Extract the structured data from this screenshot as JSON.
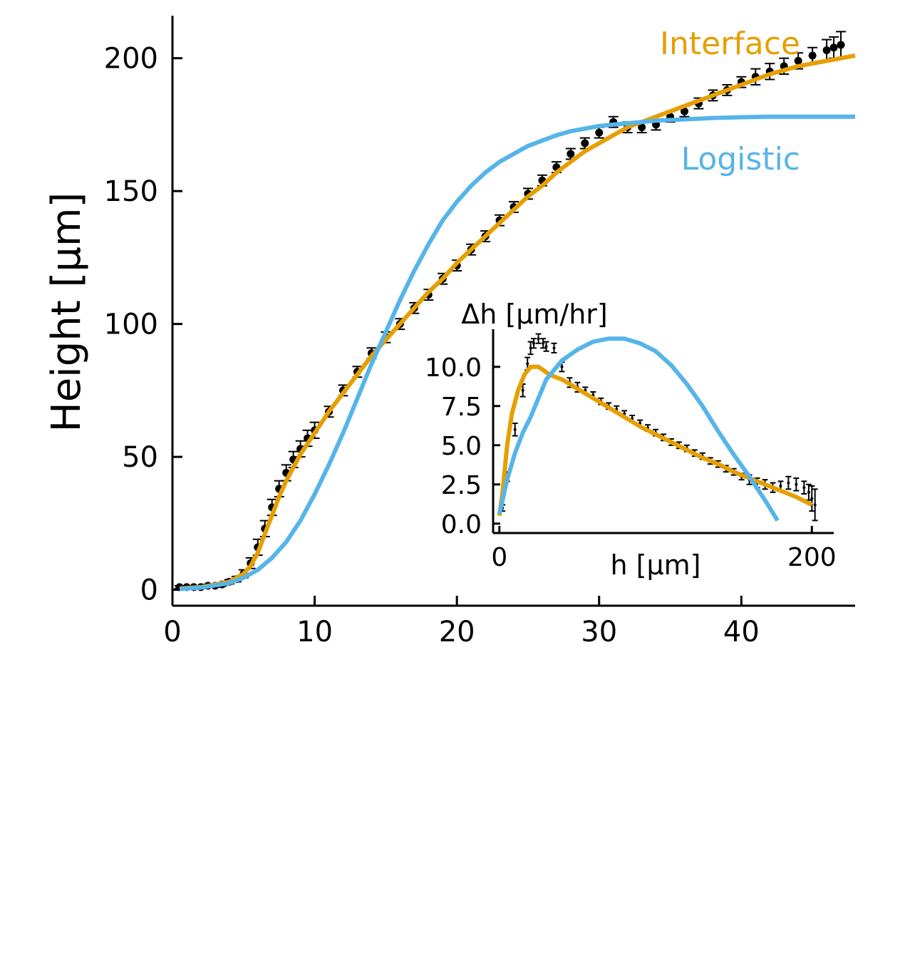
{
  "chart_data": [
    {
      "type": "line",
      "role": "main",
      "xlabel": "",
      "ylabel": "Height [μm]",
      "xlim": [
        0,
        48
      ],
      "ylim": [
        -6,
        216
      ],
      "xticks": [
        0,
        10,
        20,
        30,
        40
      ],
      "yticks": [
        0,
        50,
        100,
        150,
        200
      ],
      "xtick_labels": [
        "0",
        "10",
        "20",
        "30",
        "40"
      ],
      "ytick_labels": [
        "0",
        "50",
        "100",
        "150",
        "200"
      ],
      "grid": false,
      "colors": {
        "data": "#000000",
        "interface": "#E69F00",
        "logistic": "#56B4E9"
      },
      "data_points": {
        "name": "Data",
        "x": [
          0.5,
          1,
          1.5,
          2,
          2.5,
          3,
          3.5,
          4,
          4.5,
          5,
          5.5,
          6,
          6.5,
          7,
          7.5,
          8,
          8.5,
          9,
          9.5,
          10,
          11,
          12,
          13,
          14,
          15,
          16,
          17,
          18,
          19,
          20,
          21,
          22,
          23,
          24,
          25,
          26,
          27,
          28,
          29,
          30,
          31,
          32,
          33,
          34,
          35,
          36,
          37,
          38,
          39,
          40,
          41,
          42,
          43,
          44,
          45,
          46,
          46.5,
          47
        ],
        "y": [
          1,
          1,
          1,
          1,
          1.5,
          1.5,
          2,
          3,
          4,
          6,
          10,
          16,
          23,
          31,
          38,
          44,
          49,
          53,
          57,
          60,
          67,
          75,
          82,
          89,
          95,
          100,
          106,
          111,
          117,
          122,
          128,
          133,
          139,
          144,
          149,
          154,
          159,
          164,
          168,
          172,
          176,
          174,
          174,
          175,
          178,
          180,
          183,
          186,
          188,
          191,
          193,
          195,
          197,
          199,
          201,
          203,
          204,
          205
        ],
        "err": [
          0.5,
          0.5,
          0.5,
          0.5,
          0.5,
          0.5,
          0.5,
          0.8,
          1,
          1.5,
          2,
          3,
          3,
          3,
          3,
          3,
          3,
          3,
          3,
          3,
          2,
          2,
          2,
          2,
          2,
          2,
          2,
          2,
          2,
          2,
          2,
          2,
          2,
          2,
          2,
          2,
          2,
          2,
          2,
          2,
          2,
          2,
          2,
          2,
          2,
          2,
          2,
          2,
          2,
          2,
          3,
          3,
          3,
          3,
          3,
          4,
          4,
          5
        ]
      },
      "series": [
        {
          "name": "Interface",
          "x": [
            0.5,
            2,
            3,
            4,
            5,
            5.5,
            6,
            6.5,
            7,
            7.5,
            8,
            9,
            10,
            11,
            12,
            13,
            14,
            15,
            16,
            17,
            18,
            19,
            20,
            21,
            22,
            23,
            24,
            25,
            26,
            27,
            28,
            29,
            30,
            31,
            32,
            33,
            34,
            35,
            36,
            37,
            38,
            39,
            40,
            41,
            42,
            43,
            44,
            45,
            46,
            47,
            48
          ],
          "y": [
            0.5,
            1,
            2,
            3,
            6,
            9,
            14,
            21,
            28,
            35,
            41,
            51,
            59,
            67,
            74,
            81,
            88,
            94,
            100,
            106,
            112,
            117,
            123,
            128,
            133,
            138,
            143,
            148,
            152,
            157,
            161,
            165,
            168,
            171,
            174,
            176,
            178,
            180,
            182,
            184,
            186,
            188,
            190,
            192,
            194,
            195.5,
            197,
            198,
            199,
            200,
            201
          ]
        },
        {
          "name": "Logistic",
          "x": [
            0.5,
            2,
            4,
            5,
            6,
            7,
            8,
            9,
            10,
            11,
            12,
            13,
            14,
            15,
            16,
            17,
            18,
            19,
            20,
            21,
            22,
            23,
            24,
            25,
            26,
            27,
            28,
            29,
            30,
            31,
            32,
            33,
            34,
            36,
            38,
            40,
            42,
            44,
            46,
            48
          ],
          "y": [
            0.3,
            0.8,
            2.5,
            4.5,
            7.5,
            12,
            18,
            26,
            36,
            47,
            59,
            72,
            85,
            97,
            109,
            120,
            130,
            139,
            146,
            152,
            157,
            161,
            164,
            167,
            169,
            171,
            172.5,
            173.5,
            174.5,
            175,
            175.5,
            176,
            176.5,
            177,
            177.5,
            177.8,
            178,
            178,
            178,
            178
          ]
        }
      ],
      "annotations": [
        {
          "text": "Interface",
          "color": "#E69F00"
        },
        {
          "text": "Logistic",
          "color": "#56B4E9"
        }
      ]
    },
    {
      "type": "line",
      "role": "inset",
      "xlabel": "h [μm]",
      "ylabel": "Δh [μm/hr]",
      "xlim": [
        -4,
        214
      ],
      "ylim": [
        -0.6,
        12.4
      ],
      "xticks": [
        0,
        200
      ],
      "yticks": [
        0,
        2.5,
        5,
        7.5,
        10
      ],
      "xtick_labels": [
        "0",
        "200"
      ],
      "ytick_labels": [
        "0.0",
        "2.5",
        "5.0",
        "7.5",
        "10.0"
      ],
      "grid": false,
      "data_points": {
        "name": "Data",
        "x": [
          2,
          5,
          10,
          15,
          18,
          20,
          22,
          25,
          28,
          30,
          35,
          40,
          45,
          50,
          55,
          60,
          65,
          70,
          75,
          80,
          85,
          90,
          95,
          100,
          105,
          110,
          115,
          120,
          125,
          130,
          135,
          140,
          145,
          150,
          155,
          160,
          165,
          170,
          175,
          180,
          185,
          190,
          195,
          198,
          200,
          202
        ],
        "y": [
          1,
          3,
          6,
          8.5,
          10.2,
          11.2,
          11.5,
          11.8,
          11.5,
          11.3,
          11.2,
          10,
          9,
          8.7,
          8.5,
          8.2,
          7.8,
          7.5,
          7.3,
          7,
          6.7,
          6.4,
          6.1,
          5.8,
          5.5,
          5.2,
          5,
          4.8,
          4.5,
          4.3,
          4,
          3.8,
          3.5,
          3.3,
          3,
          2.8,
          2.6,
          2.5,
          2.3,
          2.4,
          2.6,
          2.5,
          2.3,
          2,
          1.6,
          1.2
        ],
        "err": [
          0.2,
          0.3,
          0.4,
          0.4,
          0.4,
          0.4,
          0.3,
          0.3,
          0.3,
          0.3,
          0.3,
          0.3,
          0.3,
          0.3,
          0.2,
          0.2,
          0.2,
          0.2,
          0.2,
          0.2,
          0.2,
          0.2,
          0.2,
          0.2,
          0.2,
          0.2,
          0.2,
          0.2,
          0.2,
          0.2,
          0.2,
          0.2,
          0.2,
          0.2,
          0.2,
          0.3,
          0.3,
          0.3,
          0.3,
          0.3,
          0.4,
          0.4,
          0.4,
          0.5,
          0.8,
          1
        ]
      },
      "series": [
        {
          "name": "Interface",
          "x": [
            0,
            2,
            5,
            8,
            12,
            16,
            20,
            25,
            28,
            32,
            40,
            50,
            60,
            70,
            80,
            90,
            100,
            110,
            120,
            130,
            140,
            150,
            160,
            170,
            180,
            190,
            200
          ],
          "y": [
            0.5,
            2,
            5,
            7,
            8.5,
            9.5,
            10,
            10,
            9.8,
            9.5,
            9.2,
            8.6,
            8.0,
            7.4,
            6.8,
            6.2,
            5.7,
            5.2,
            4.7,
            4.2,
            3.8,
            3.3,
            2.9,
            2.5,
            2.1,
            1.7,
            1.2
          ]
        },
        {
          "name": "Logistic",
          "x": [
            0,
            5,
            10,
            15,
            20,
            25,
            30,
            40,
            50,
            60,
            70,
            80,
            90,
            100,
            110,
            120,
            130,
            140,
            150,
            160,
            170,
            178
          ],
          "y": [
            0.6,
            2.8,
            4.5,
            5.8,
            6.8,
            8,
            9.2,
            10.4,
            11.1,
            11.6,
            11.8,
            11.8,
            11.5,
            11,
            10.1,
            8.9,
            7.5,
            5.9,
            4.4,
            3.0,
            1.5,
            0.2
          ]
        }
      ]
    }
  ]
}
